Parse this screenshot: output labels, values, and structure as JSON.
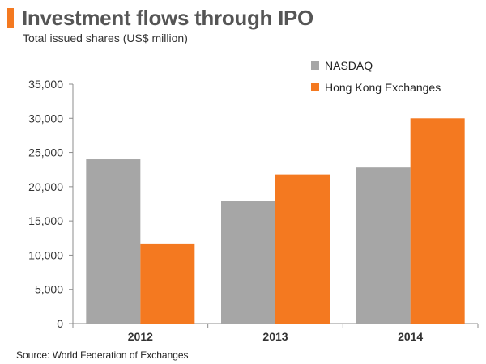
{
  "header": {
    "title": "Investment flows through IPO",
    "subtitle": "Total issued shares (US$ million)",
    "accent_color": "#F47920"
  },
  "footer": {
    "source": "Source: World Federation of Exchanges"
  },
  "chart_data": {
    "type": "bar",
    "title": "Investment flows through IPO",
    "subtitle": "Total issued shares (US$ million)",
    "xlabel": "",
    "ylabel": "",
    "categories": [
      "2012",
      "2013",
      "2014"
    ],
    "series": [
      {
        "name": "NASDAQ",
        "color": "#A6A6A6",
        "values": [
          24000,
          17900,
          22800
        ]
      },
      {
        "name": "Hong Kong Exchanges",
        "color": "#F47920",
        "values": [
          11600,
          21800,
          30000
        ]
      }
    ],
    "ylim": [
      0,
      35000
    ],
    "yticks": [
      0,
      5000,
      10000,
      15000,
      20000,
      25000,
      30000,
      35000
    ],
    "ytick_labels": [
      "0",
      "5,000",
      "10,000",
      "15,000",
      "20,000",
      "25,000",
      "30,000",
      "35,000"
    ],
    "legend_position": "top-right",
    "grid": false
  }
}
